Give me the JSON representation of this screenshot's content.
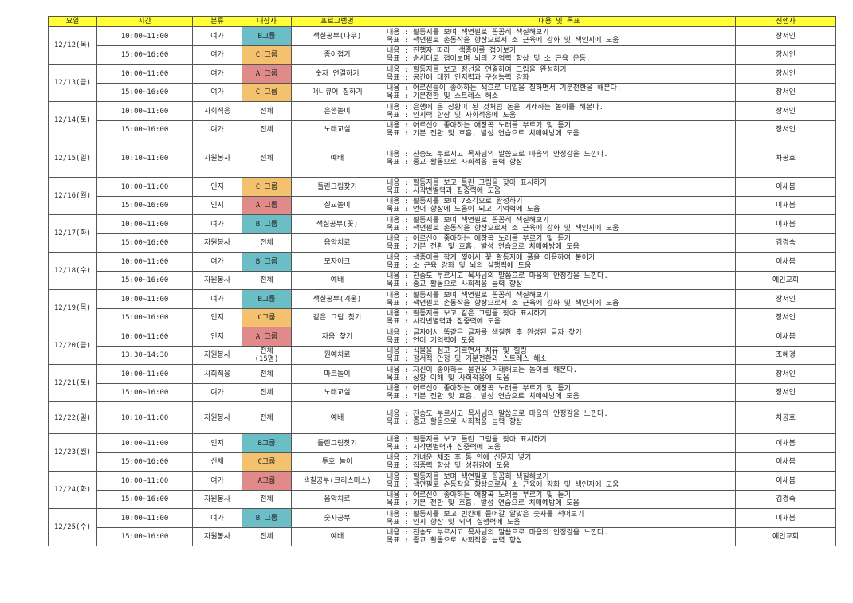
{
  "colors": {
    "header": "#ffff33",
    "B": "#6bbdc6",
    "C": "#f4c26e",
    "A": "#e08a8a"
  },
  "headers": [
    "요일",
    "시간",
    "분류",
    "대상자",
    "프로그램명",
    "내용 및 목표",
    "진행자"
  ],
  "days": [
    {
      "date": "12/12(목)",
      "rows": [
        {
          "time": "10:00~11:00",
          "category": "여가",
          "target": "B그룹",
          "group": "B",
          "program": "색칠공부(나무)",
          "content": "내용 : 활동지를 보며 색연필로 꼼꼼히 색칠해보기\n목표 : 색연필로 손동작을 향상으로서 소 근육에 강화 및 색인지에 도움",
          "leader": "장서인",
          "h": 24
        },
        {
          "time": "15:00~16:00",
          "category": "여가",
          "target": "C 그룹",
          "group": "C",
          "program": "종이접기",
          "content": "내용 : 진행자 따라  색종이를 접어보기\n목표 : 순서대로 접어보며 뇌의 기억력 향상 및 소 근육 운동.",
          "leader": "장서인",
          "h": 23
        }
      ]
    },
    {
      "date": "12/13(금)",
      "rows": [
        {
          "time": "10:00~11:00",
          "category": "여가",
          "target": "A 그룹",
          "group": "A",
          "program": "숫자 연결하기",
          "content": "내용 : 활동지를 보고 정선을 연결하여 그림을 완성하기\n목표 : 공간에 대한 인지력과 구성능력 강화",
          "leader": "장서인",
          "h": 24
        },
        {
          "time": "15:00~16:00",
          "category": "여가",
          "target": "C 그룹",
          "group": "C",
          "program": "매니큐어 칠하기",
          "content": "내용 : 어르신들이 좋아하는 색으로 네일을 칠하면서 기분전환을 해본다.\n목표 : 기분전환 및 스트레스 해소",
          "leader": "장서인",
          "h": 23
        }
      ]
    },
    {
      "date": "12/14(토)",
      "rows": [
        {
          "time": "10:00~11:00",
          "category": "사회적응",
          "target": "전체",
          "group": "",
          "program": "은행놀이",
          "content": "내용 : 은행에 온 상황이 된 것처럼 돈을 거래하는 놀이를 해본다.\n목표 : 인지력 향상 및 사회적응에 도움",
          "leader": "장서인",
          "h": 24
        },
        {
          "time": "15:00~16:00",
          "category": "여가",
          "target": "전체",
          "group": "",
          "program": "노래교실",
          "content": "내용 : 어르신이 좋아하는 애창곡 노래를 부르기 및 듣기\n목표 : 기분 전환 및 호흡, 발성 연습으로 치매예방에 도움",
          "leader": "장서인",
          "h": 23
        }
      ]
    },
    {
      "date": "12/15(일)",
      "rows": [
        {
          "time": "10:10~11:00",
          "category": "자원봉사",
          "target": "전체",
          "group": "",
          "program": "예배",
          "content": "내용 : 찬송도 부르시고 목사님의 말씀으로 마음의 안정감을 느낀다.\n목표 : 종교 활동으로 사회적응 능력 향상",
          "leader": "차공호",
          "h": 48
        }
      ]
    },
    {
      "date": "12/16(월)",
      "rows": [
        {
          "time": "10:00~11:00",
          "category": "인지",
          "target": "C 그룹",
          "group": "C",
          "program": "틀린그림찾기",
          "content": "내용 : 활동지를 보고 틀린 그림을 찾아 표시하기\n목표 : 시각변별력과 집중력에 도움",
          "leader": "이새봄",
          "h": 24
        },
        {
          "time": "15:00~16:00",
          "category": "인지",
          "target": "A 그룹",
          "group": "A",
          "program": "칠교놀이",
          "content": "내용 : 활동지를 보며 7조각으로 완성하기\n목표 : 언어 향상에 도움이 되고 기억력에 도움",
          "leader": "이새봄",
          "h": 23
        }
      ]
    },
    {
      "date": "12/17(화)",
      "rows": [
        {
          "time": "10:00~11:00",
          "category": "여가",
          "target": "B 그룹",
          "group": "B",
          "program": "색칠공부(꽃)",
          "content": "내용 : 활동지를 보며 색연필로 꼼꼼히 색칠해보기\n목표 : 색연필로 손동작을 향상으로서 소 근육에 강화 및 색인지에 도움",
          "leader": "이새봄",
          "h": 24
        },
        {
          "time": "15:00~16:00",
          "category": "자원봉사",
          "target": "전체",
          "group": "",
          "program": "음악치료",
          "content": "내용 : 어르신이 좋아하는 애창곡 노래를 부르기 및 듣기\n목표 : 기분 전환 및 호흡, 발성 연습으로 치매예방에 도움",
          "leader": "김경숙",
          "h": 23
        }
      ]
    },
    {
      "date": "12/18(수)",
      "rows": [
        {
          "time": "10:00~11:00",
          "category": "여가",
          "target": "B 그룹",
          "group": "B",
          "program": "모자이크",
          "content": "내용 : 색종이를 작게 찢어서 꽃 활동지에 풀을 이용하여 붙이기\n목표 : 소 근육 강화 및 뇌의 실행력에 도움",
          "leader": "이새봄",
          "h": 24
        },
        {
          "time": "15:00~16:00",
          "category": "자원봉사",
          "target": "전체",
          "group": "",
          "program": "예배",
          "content": "내용 : 찬송도 부르시고 목사님의 말씀으로 마음의 안정감을 느낀다.\n목표 : 종교 활동으로 사회적응 능력 향상",
          "leader": "예인교회",
          "h": 23
        }
      ]
    },
    {
      "date": "12/19(목)",
      "rows": [
        {
          "time": "10:00~11:00",
          "category": "여가",
          "target": "B그룹",
          "group": "B",
          "program": "색칠공부(겨울)",
          "content": "내용 : 활동지를 보며 색연필로 꼼꼼히 색칠해보기\n목표 : 색연필로 손동작을 향상으로서 소 근육에 강화 및 색인지에 도움",
          "leader": "장서인",
          "h": 24
        },
        {
          "time": "15:00~16:00",
          "category": "인지",
          "target": "C그룹",
          "group": "C",
          "program": "같은 그림 찾기",
          "content": "내용 : 활동지를 보고 같은 그림을 찾아 표시하기\n목표 : 시각변별력과 집중력에 도움",
          "leader": "장서인",
          "h": 23
        }
      ]
    },
    {
      "date": "12/20(금)",
      "rows": [
        {
          "time": "10:00~11:00",
          "category": "인지",
          "target": "A 그룹",
          "group": "A",
          "program": "자음 찾기",
          "content": "내용 : 글자에서 똑같은 글자를 색칠한 후 완성된 글자 찾기\n목표 : 언어 기억력에 도움",
          "leader": "이새봄",
          "h": 24
        },
        {
          "time": "13:30~14:30",
          "category": "자원봉사",
          "target": "전체\n(15명)",
          "group": "",
          "program": "원예치료",
          "content": "내용 : 식물을 심고 기르면서 치유 및 힐링\n목표 : 정서적 안정 및 기분전환과 스트레스 해소",
          "leader": "조혜경",
          "h": 23
        }
      ]
    },
    {
      "date": "12/21(토)",
      "rows": [
        {
          "time": "10:00~11:00",
          "category": "사회적응",
          "target": "전체",
          "group": "",
          "program": "마트놀이",
          "content": "내용 : 자신이 좋아하는 물건을 거래해보는 놀이를 해본다.\n목표 : 상황 이해 및 사회적응에 도움",
          "leader": "장서인",
          "h": 24
        },
        {
          "time": "15:00~16:00",
          "category": "여가",
          "target": "전체",
          "group": "",
          "program": "노래교실",
          "content": "내용 : 어르신이 좋아하는 애창곡 노래를 부르기 및 듣기\n목표 : 기분 전환 및 호흡, 발성 연습으로 치매예방에 도움",
          "leader": "장서인",
          "h": 23
        }
      ]
    },
    {
      "date": "12/22(일)",
      "rows": [
        {
          "time": "10:10~11:00",
          "category": "자원봉사",
          "target": "전체",
          "group": "",
          "program": "예배",
          "content": "내용 : 찬송도 부르시고 목사님의 말씀으로 마음의 안정감을 느낀다.\n목표 : 종교 활동으로 사회적응 능력 향상",
          "leader": "차공호",
          "h": 40
        }
      ]
    },
    {
      "date": "12/23(월)",
      "rows": [
        {
          "time": "10:00~11:00",
          "category": "인지",
          "target": "B그룹",
          "group": "B",
          "program": "틀린그림찾기",
          "content": "내용 : 활동지를 보고 틀린 그림을 찾아 표시하기\n목표 : 시각변별력과 집중력에 도움",
          "leader": "이새봄",
          "h": 24
        },
        {
          "time": "15:00~16:00",
          "category": "신체",
          "target": "C그룹",
          "group": "C",
          "program": "투호 놀이",
          "content": "내용 : 가벼운 체조 후 통 안에 신문지 넣기\n목표 : 집중력 향상 및 성취감에 도움",
          "leader": "이새봄",
          "h": 23
        }
      ]
    },
    {
      "date": "12/24(화)",
      "rows": [
        {
          "time": "10:00~11:00",
          "category": "여가",
          "target": "A그룹",
          "group": "A",
          "program": "색칠공부(크리스마스)",
          "content": "내용 : 활동지를 보며 색연필로 꼼꼼히 색칠해보기\n목표 : 색연필로 손동작을 향상으로서 소 근육에 강화 및 색인지에 도움",
          "leader": "이새봄",
          "h": 24
        },
        {
          "time": "15:00~16:00",
          "category": "자원봉사",
          "target": "전체",
          "group": "",
          "program": "음악치료",
          "content": "내용 : 어르신이 좋아하는 애창곡 노래를 부르기 및 듣기\n목표 : 기분 전환 및 호흡, 발성 연습으로 치매예방에 도움",
          "leader": "김경숙",
          "h": 23
        }
      ]
    },
    {
      "date": "12/25(수)",
      "rows": [
        {
          "time": "10:00~11:00",
          "category": "여가",
          "target": "B 그룹",
          "group": "B",
          "program": "숫자공부",
          "content": "내용 : 활동지를 보고 빈칸에 들어갈 알맞은 숫자를 적어보기\n목표 : 인지 향상 및 뇌의 실행력에 도움",
          "leader": "이새봄",
          "h": 24
        },
        {
          "time": "15:00~16:00",
          "category": "자원봉사",
          "target": "전체",
          "group": "",
          "program": "예배",
          "content": "내용 : 찬송도 부르시고 목사님의 말씀으로 마음의 안정감을 느낀다.\n목표 : 종교 활동으로 사회적응 능력 향상",
          "leader": "예인교회",
          "h": 23
        }
      ]
    }
  ]
}
